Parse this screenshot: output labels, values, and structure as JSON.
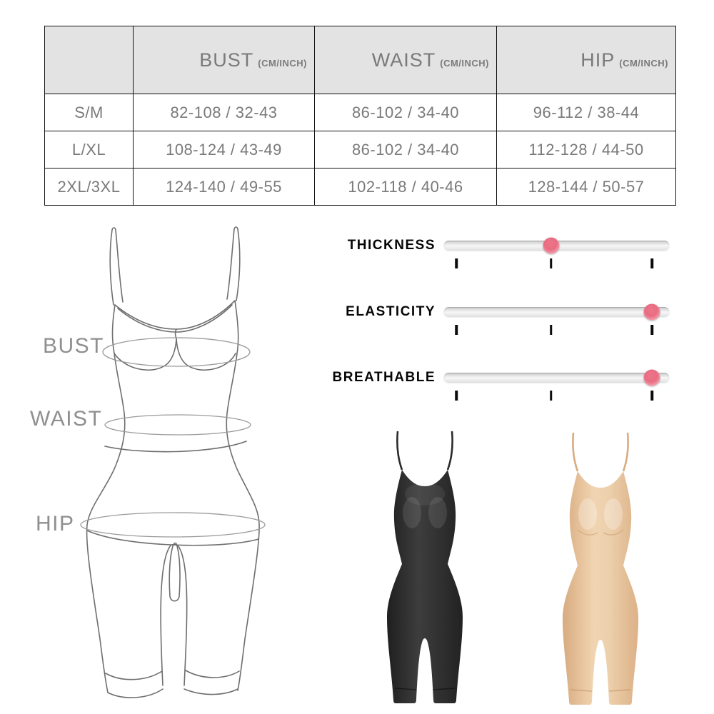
{
  "size_table": {
    "corner_label": "",
    "headers": [
      {
        "name": "BUST",
        "unit": "(CM/INCH)"
      },
      {
        "name": "WAIST",
        "unit": "(CM/INCH)"
      },
      {
        "name": "HIP",
        "unit": "(CM/INCH)"
      }
    ],
    "rows": [
      {
        "size": "S/M",
        "bust": "82-108 / 32-43",
        "waist": "86-102 / 34-40",
        "hip": "96-112 / 38-44"
      },
      {
        "size": "L/XL",
        "bust": "108-124 / 43-49",
        "waist": "86-102 / 34-40",
        "hip": "112-128 / 44-50"
      },
      {
        "size": "2XL/3XL",
        "bust": "124-140 / 49-55",
        "waist": "102-118 / 40-46",
        "hip": "128-144 / 50-57"
      }
    ]
  },
  "measurement_diagram": {
    "bust_label": "BUST",
    "waist_label": "WAIST",
    "hip_label": "HIP"
  },
  "attribute_sliders": {
    "items": [
      {
        "label": "THICKNESS",
        "value_percent": 47.5
      },
      {
        "label": "ELASTICITY",
        "value_percent": 92.5
      },
      {
        "label": "BREATHABLE",
        "value_percent": 92.5
      }
    ],
    "tick_positions_percent": [
      5.5,
      47.5,
      92.5
    ],
    "knob_color": "#e96d82",
    "track_color": "#e6e6e6"
  },
  "product_variants": [
    {
      "name": "black bodysuit",
      "color": "#2e2e2e"
    },
    {
      "name": "nude bodysuit",
      "color": "#e8c9a3"
    }
  ]
}
